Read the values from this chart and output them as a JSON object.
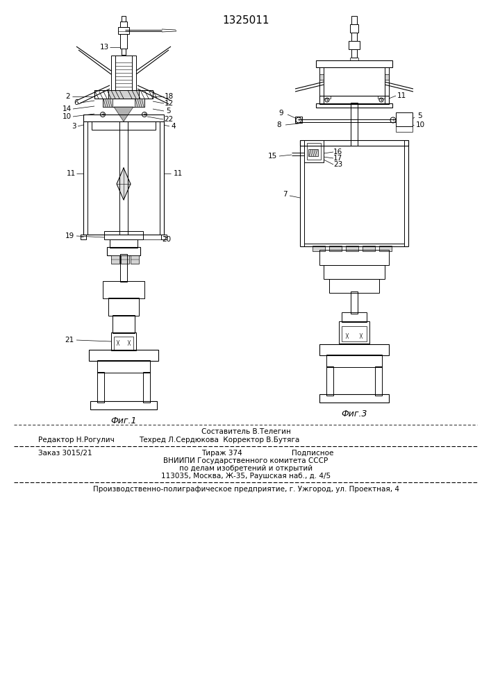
{
  "patent_number": "1325011",
  "background_color": "#ffffff",
  "line_color": "#000000",
  "fig1_label": "Фиг.1",
  "fig3_label": "Фиг.3",
  "footer_line1_left": "Редактор Н.Рогулич",
  "footer_line1_center": "Составитель В.Телегин",
  "footer_line1_right": "Техред Л.Сердюкова  Корректор В.Бутяга",
  "footer_order": "Заказ 3015/21",
  "footer_tirazh": "Тираж 374",
  "footer_podp": "Подписное",
  "footer_vniip1": "ВНИИПИ Государственного комитета СССР",
  "footer_vniip2": "по делам изобретений и открытий",
  "footer_vniip3": "113035, Москва, Ж-35, Раушская наб., д. 4/5",
  "footer_prod": "Производственно-полиграфическое предприятие, г. Ужгород, ул. Проектная, 4",
  "lfs": 7.5,
  "fig_label_fs": 9
}
